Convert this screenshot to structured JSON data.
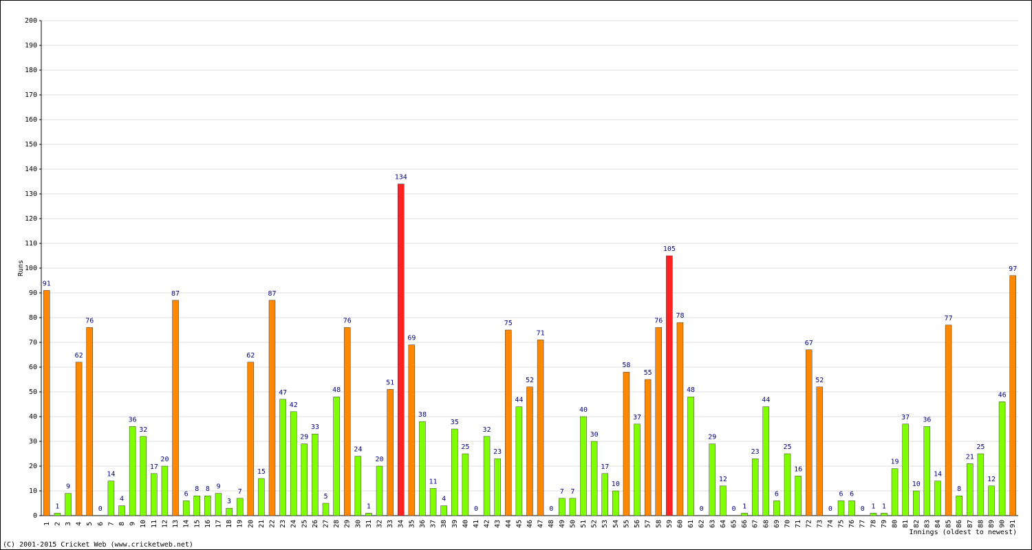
{
  "chart_data": {
    "type": "bar",
    "y_label": "Runs",
    "x_label": "Innings (oldest to newest)",
    "footer": "(C) 2001-2015 Cricket Web (www.cricketweb.net)",
    "categories": [
      "1",
      "2",
      "3",
      "4",
      "5",
      "6",
      "7",
      "8",
      "9",
      "10",
      "11",
      "12",
      "13",
      "14",
      "15",
      "16",
      "17",
      "18",
      "19",
      "20",
      "21",
      "22",
      "23",
      "24",
      "25",
      "26",
      "27",
      "28",
      "29",
      "30",
      "31",
      "32",
      "33",
      "34",
      "35",
      "36",
      "37",
      "38",
      "39",
      "40",
      "41",
      "42",
      "43",
      "44",
      "45",
      "46",
      "47",
      "48",
      "49",
      "50",
      "51",
      "52",
      "53",
      "54",
      "55",
      "56",
      "57",
      "58",
      "59",
      "60",
      "61",
      "62",
      "63",
      "64",
      "65",
      "66",
      "67",
      "68",
      "69",
      "70",
      "71",
      "72",
      "73",
      "74",
      "75",
      "76",
      "77",
      "78",
      "79",
      "80",
      "81",
      "82",
      "83",
      "84",
      "85",
      "86",
      "87",
      "88",
      "89",
      "90",
      "91"
    ],
    "values": [
      91,
      1,
      9,
      62,
      76,
      0,
      14,
      4,
      36,
      32,
      17,
      20,
      87,
      6,
      8,
      8,
      9,
      3,
      7,
      62,
      15,
      87,
      47,
      42,
      29,
      33,
      5,
      48,
      76,
      24,
      1,
      20,
      51,
      134,
      69,
      38,
      11,
      4,
      35,
      25,
      0,
      32,
      23,
      75,
      44,
      52,
      71,
      0,
      7,
      7,
      40,
      30,
      17,
      10,
      58,
      37,
      55,
      76,
      105,
      78,
      48,
      0,
      29,
      12,
      0,
      1,
      23,
      44,
      6,
      25,
      16,
      67,
      52,
      0,
      6,
      6,
      0,
      1,
      1,
      19,
      37,
      10,
      36,
      14,
      77,
      8,
      21,
      25,
      12,
      46,
      97
    ],
    "colors": [
      "#ff8800",
      "#80ff00",
      "#80ff00",
      "#ff8800",
      "#ff8800",
      "#80ff00",
      "#80ff00",
      "#80ff00",
      "#80ff00",
      "#80ff00",
      "#80ff00",
      "#80ff00",
      "#ff8800",
      "#80ff00",
      "#80ff00",
      "#80ff00",
      "#80ff00",
      "#80ff00",
      "#80ff00",
      "#ff8800",
      "#80ff00",
      "#ff8800",
      "#80ff00",
      "#80ff00",
      "#80ff00",
      "#80ff00",
      "#80ff00",
      "#80ff00",
      "#ff8800",
      "#80ff00",
      "#80ff00",
      "#80ff00",
      "#ff8800",
      "#ff2222",
      "#ff8800",
      "#80ff00",
      "#80ff00",
      "#80ff00",
      "#80ff00",
      "#80ff00",
      "#80ff00",
      "#80ff00",
      "#80ff00",
      "#ff8800",
      "#80ff00",
      "#ff8800",
      "#ff8800",
      "#80ff00",
      "#80ff00",
      "#80ff00",
      "#80ff00",
      "#80ff00",
      "#80ff00",
      "#80ff00",
      "#ff8800",
      "#80ff00",
      "#ff8800",
      "#ff8800",
      "#ff2222",
      "#ff8800",
      "#80ff00",
      "#80ff00",
      "#80ff00",
      "#80ff00",
      "#80ff00",
      "#80ff00",
      "#80ff00",
      "#80ff00",
      "#80ff00",
      "#80ff00",
      "#80ff00",
      "#ff8800",
      "#ff8800",
      "#80ff00",
      "#80ff00",
      "#80ff00",
      "#80ff00",
      "#80ff00",
      "#80ff00",
      "#80ff00",
      "#80ff00",
      "#80ff00",
      "#80ff00",
      "#80ff00",
      "#ff8800",
      "#80ff00",
      "#80ff00",
      "#80ff00",
      "#80ff00",
      "#80ff00",
      "#ff8800"
    ],
    "ylim": [
      0,
      200
    ],
    "yticks": [
      0,
      10,
      20,
      30,
      40,
      50,
      60,
      70,
      80,
      90,
      100,
      110,
      120,
      130,
      140,
      150,
      160,
      170,
      180,
      190,
      200
    ],
    "grid": true
  }
}
